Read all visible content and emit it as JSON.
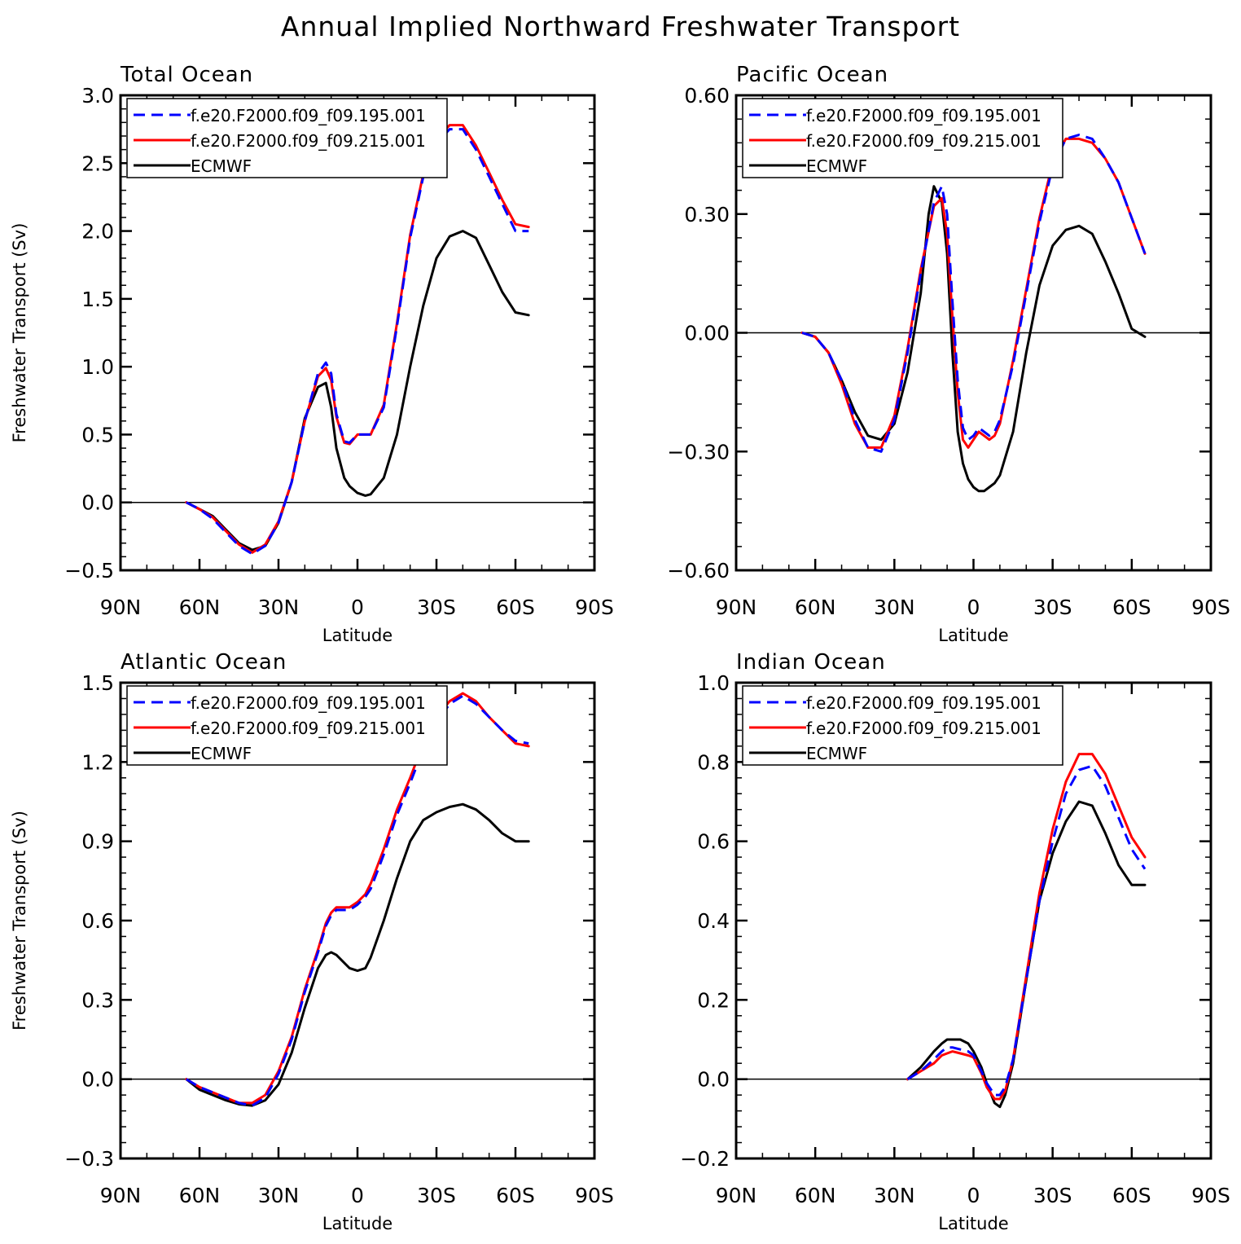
{
  "title": "Annual Implied Northward Freshwater Transport",
  "colors": {
    "case1": "#0000ff",
    "case2": "#ff0000",
    "obs": "#000000"
  },
  "chart_data": [
    {
      "type": "line",
      "panel_title": "Total Ocean",
      "xlabel": "Latitude",
      "ylabel": "Freshwater Transport (Sv)",
      "xlim": [
        90,
        -90
      ],
      "xticks": [
        90,
        60,
        30,
        0,
        -30,
        -60,
        -90
      ],
      "xtick_labels": [
        "90N",
        "60N",
        "30N",
        "0",
        "30S",
        "60S",
        "90S"
      ],
      "ylim": [
        -0.5,
        3.0
      ],
      "yticks": [
        -0.5,
        0.0,
        0.5,
        1.0,
        1.5,
        2.0,
        2.5,
        3.0
      ],
      "ytick_labels": [
        "−0.5",
        "0.0",
        "0.5",
        "1.0",
        "1.5",
        "2.0",
        "2.5",
        "3.0"
      ],
      "legend_position": "top-left",
      "series": [
        {
          "name": "f.e20.F2000.f09_f09.195.001",
          "style": "dashed",
          "color_key": "case1",
          "x": [
            65,
            60,
            55,
            50,
            45,
            40,
            35,
            30,
            25,
            20,
            15,
            12,
            10,
            8,
            5,
            3,
            0,
            -3,
            -5,
            -10,
            -15,
            -20,
            -25,
            -30,
            -35,
            -40,
            -45,
            -50,
            -55,
            -60,
            -65
          ],
          "y": [
            0.0,
            -0.05,
            -0.12,
            -0.22,
            -0.32,
            -0.38,
            -0.32,
            -0.15,
            0.15,
            0.6,
            0.95,
            1.03,
            0.95,
            0.65,
            0.45,
            0.44,
            0.5,
            0.5,
            0.5,
            0.7,
            1.3,
            1.95,
            2.4,
            2.65,
            2.75,
            2.75,
            2.6,
            2.4,
            2.2,
            2.0,
            2.0
          ]
        },
        {
          "name": "f.e20.F2000.f09_f09.215.001",
          "style": "solid",
          "color_key": "case2",
          "x": [
            65,
            60,
            55,
            50,
            45,
            40,
            35,
            30,
            25,
            20,
            15,
            12,
            10,
            8,
            5,
            3,
            0,
            -3,
            -5,
            -10,
            -15,
            -20,
            -25,
            -30,
            -35,
            -40,
            -45,
            -50,
            -55,
            -60,
            -65
          ],
          "y": [
            0.0,
            -0.05,
            -0.11,
            -0.21,
            -0.31,
            -0.37,
            -0.31,
            -0.14,
            0.15,
            0.6,
            0.93,
            0.99,
            0.9,
            0.63,
            0.44,
            0.43,
            0.5,
            0.5,
            0.5,
            0.72,
            1.32,
            1.97,
            2.42,
            2.68,
            2.78,
            2.78,
            2.63,
            2.43,
            2.23,
            2.05,
            2.03
          ]
        },
        {
          "name": "ECMWF",
          "style": "solid",
          "color_key": "obs",
          "x": [
            65,
            60,
            55,
            50,
            45,
            40,
            35,
            30,
            25,
            20,
            15,
            12,
            10,
            8,
            5,
            3,
            0,
            -3,
            -5,
            -10,
            -15,
            -20,
            -25,
            -30,
            -35,
            -40,
            -45,
            -50,
            -55,
            -60,
            -65
          ],
          "y": [
            0.0,
            -0.05,
            -0.1,
            -0.2,
            -0.3,
            -0.35,
            -0.32,
            -0.15,
            0.15,
            0.62,
            0.85,
            0.88,
            0.7,
            0.4,
            0.18,
            0.12,
            0.07,
            0.05,
            0.06,
            0.18,
            0.5,
            1.0,
            1.45,
            1.8,
            1.96,
            2.0,
            1.95,
            1.75,
            1.55,
            1.4,
            1.38
          ]
        }
      ]
    },
    {
      "type": "line",
      "panel_title": "Pacific Ocean",
      "xlabel": "Latitude",
      "ylabel": "",
      "xlim": [
        90,
        -90
      ],
      "xticks": [
        90,
        60,
        30,
        0,
        -30,
        -60,
        -90
      ],
      "xtick_labels": [
        "90N",
        "60N",
        "30N",
        "0",
        "30S",
        "60S",
        "90S"
      ],
      "ylim": [
        -0.6,
        0.6
      ],
      "yticks": [
        -0.6,
        -0.3,
        0.0,
        0.3,
        0.6
      ],
      "ytick_labels": [
        "−0.60",
        "−0.30",
        "0.00",
        "0.30",
        "0.60"
      ],
      "legend_position": "top-left",
      "series": [
        {
          "name": "f.e20.F2000.f09_f09.195.001",
          "style": "dashed",
          "color_key": "case1",
          "x": [
            65,
            60,
            55,
            50,
            45,
            40,
            35,
            30,
            25,
            20,
            15,
            12,
            10,
            8,
            6,
            4,
            2,
            0,
            -2,
            -4,
            -6,
            -8,
            -10,
            -15,
            -20,
            -25,
            -30,
            -35,
            -40,
            -45,
            -50,
            -55,
            -60,
            -65
          ],
          "y": [
            0.0,
            -0.01,
            -0.05,
            -0.12,
            -0.22,
            -0.29,
            -0.3,
            -0.22,
            -0.05,
            0.15,
            0.33,
            0.37,
            0.3,
            0.08,
            -0.12,
            -0.24,
            -0.27,
            -0.26,
            -0.24,
            -0.25,
            -0.26,
            -0.25,
            -0.22,
            -0.08,
            0.1,
            0.28,
            0.42,
            0.49,
            0.5,
            0.49,
            0.44,
            0.38,
            0.29,
            0.2
          ]
        },
        {
          "name": "f.e20.F2000.f09_f09.215.001",
          "style": "solid",
          "color_key": "case2",
          "x": [
            65,
            60,
            55,
            50,
            45,
            40,
            35,
            30,
            25,
            20,
            15,
            12,
            10,
            8,
            6,
            4,
            2,
            0,
            -2,
            -4,
            -6,
            -8,
            -10,
            -15,
            -20,
            -25,
            -30,
            -35,
            -40,
            -45,
            -50,
            -55,
            -60,
            -65
          ],
          "y": [
            0.0,
            -0.01,
            -0.05,
            -0.13,
            -0.23,
            -0.29,
            -0.29,
            -0.21,
            -0.04,
            0.16,
            0.32,
            0.34,
            0.25,
            0.04,
            -0.15,
            -0.27,
            -0.29,
            -0.27,
            -0.25,
            -0.26,
            -0.27,
            -0.26,
            -0.23,
            -0.07,
            0.11,
            0.29,
            0.43,
            0.49,
            0.49,
            0.48,
            0.44,
            0.38,
            0.29,
            0.2
          ]
        },
        {
          "name": "ECMWF",
          "style": "solid",
          "color_key": "obs",
          "x": [
            65,
            60,
            55,
            50,
            45,
            40,
            35,
            30,
            25,
            20,
            17,
            15,
            12,
            10,
            8,
            6,
            4,
            2,
            0,
            -2,
            -4,
            -6,
            -8,
            -10,
            -15,
            -20,
            -25,
            -30,
            -35,
            -40,
            -45,
            -50,
            -55,
            -60,
            -65
          ],
          "y": [
            0.0,
            -0.01,
            -0.05,
            -0.12,
            -0.2,
            -0.26,
            -0.27,
            -0.23,
            -0.1,
            0.1,
            0.3,
            0.37,
            0.33,
            0.2,
            -0.05,
            -0.25,
            -0.33,
            -0.37,
            -0.39,
            -0.4,
            -0.4,
            -0.39,
            -0.38,
            -0.36,
            -0.25,
            -0.05,
            0.12,
            0.22,
            0.26,
            0.27,
            0.25,
            0.18,
            0.1,
            0.01,
            -0.01
          ]
        }
      ]
    },
    {
      "type": "line",
      "panel_title": "Atlantic Ocean",
      "xlabel": "Latitude",
      "ylabel": "Freshwater Transport (Sv)",
      "xlim": [
        90,
        -90
      ],
      "xticks": [
        90,
        60,
        30,
        0,
        -30,
        -60,
        -90
      ],
      "xtick_labels": [
        "90N",
        "60N",
        "30N",
        "0",
        "30S",
        "60S",
        "90S"
      ],
      "ylim": [
        -0.3,
        1.5
      ],
      "yticks": [
        -0.3,
        0.0,
        0.3,
        0.6,
        0.9,
        1.2,
        1.5
      ],
      "ytick_labels": [
        "−0.3",
        "0.0",
        "0.3",
        "0.6",
        "0.9",
        "1.2",
        "1.5"
      ],
      "legend_position": "top-left",
      "series": [
        {
          "name": "f.e20.F2000.f09_f09.195.001",
          "style": "dashed",
          "color_key": "case1",
          "x": [
            65,
            60,
            55,
            50,
            45,
            40,
            35,
            30,
            25,
            20,
            15,
            12,
            10,
            8,
            5,
            3,
            0,
            -3,
            -5,
            -10,
            -15,
            -20,
            -25,
            -30,
            -35,
            -40,
            -45,
            -50,
            -55,
            -60,
            -65
          ],
          "y": [
            0.0,
            -0.03,
            -0.05,
            -0.07,
            -0.09,
            -0.1,
            -0.07,
            0.02,
            0.15,
            0.33,
            0.48,
            0.58,
            0.62,
            0.64,
            0.64,
            0.64,
            0.66,
            0.69,
            0.72,
            0.85,
            1.0,
            1.12,
            1.25,
            1.35,
            1.42,
            1.45,
            1.42,
            1.37,
            1.32,
            1.28,
            1.27
          ]
        },
        {
          "name": "f.e20.F2000.f09_f09.215.001",
          "style": "solid",
          "color_key": "case2",
          "x": [
            65,
            60,
            55,
            50,
            45,
            40,
            35,
            30,
            25,
            20,
            15,
            12,
            10,
            8,
            5,
            3,
            0,
            -3,
            -5,
            -10,
            -15,
            -20,
            -25,
            -30,
            -35,
            -40,
            -45,
            -50,
            -55,
            -60,
            -65
          ],
          "y": [
            0.0,
            -0.03,
            -0.05,
            -0.07,
            -0.09,
            -0.09,
            -0.06,
            0.03,
            0.16,
            0.34,
            0.49,
            0.59,
            0.63,
            0.65,
            0.65,
            0.65,
            0.67,
            0.7,
            0.74,
            0.87,
            1.02,
            1.14,
            1.27,
            1.37,
            1.43,
            1.46,
            1.43,
            1.37,
            1.32,
            1.27,
            1.26
          ]
        },
        {
          "name": "ECMWF",
          "style": "solid",
          "color_key": "obs",
          "x": [
            65,
            60,
            55,
            50,
            45,
            40,
            35,
            30,
            25,
            20,
            15,
            12,
            10,
            8,
            5,
            3,
            0,
            -3,
            -5,
            -10,
            -15,
            -20,
            -25,
            -30,
            -35,
            -40,
            -45,
            -50,
            -55,
            -60,
            -65
          ],
          "y": [
            0.0,
            -0.04,
            -0.06,
            -0.08,
            -0.095,
            -0.1,
            -0.08,
            -0.02,
            0.1,
            0.27,
            0.42,
            0.47,
            0.48,
            0.47,
            0.44,
            0.42,
            0.41,
            0.42,
            0.46,
            0.6,
            0.76,
            0.9,
            0.98,
            1.01,
            1.03,
            1.04,
            1.02,
            0.98,
            0.93,
            0.9,
            0.9
          ]
        }
      ]
    },
    {
      "type": "line",
      "panel_title": "Indian Ocean",
      "xlabel": "Latitude",
      "ylabel": "",
      "xlim": [
        90,
        -90
      ],
      "xticks": [
        90,
        60,
        30,
        0,
        -30,
        -60,
        -90
      ],
      "xtick_labels": [
        "90N",
        "60N",
        "30N",
        "0",
        "30S",
        "60S",
        "90S"
      ],
      "ylim": [
        -0.2,
        1.0
      ],
      "yticks": [
        -0.2,
        0.0,
        0.2,
        0.4,
        0.6,
        0.8,
        1.0
      ],
      "ytick_labels": [
        "−0.2",
        "0.0",
        "0.2",
        "0.4",
        "0.6",
        "0.8",
        "1.0"
      ],
      "legend_position": "top-left",
      "series": [
        {
          "name": "f.e20.F2000.f09_f09.195.001",
          "style": "dashed",
          "color_key": "case1",
          "x": [
            25,
            20,
            15,
            12,
            10,
            8,
            5,
            2,
            0,
            -3,
            -5,
            -8,
            -10,
            -12,
            -15,
            -20,
            -25,
            -30,
            -35,
            -40,
            -45,
            -50,
            -55,
            -60,
            -65
          ],
          "y": [
            0.0,
            0.02,
            0.05,
            0.07,
            0.08,
            0.08,
            0.075,
            0.07,
            0.06,
            0.02,
            -0.01,
            -0.04,
            -0.04,
            -0.02,
            0.05,
            0.25,
            0.45,
            0.6,
            0.72,
            0.78,
            0.79,
            0.74,
            0.66,
            0.58,
            0.53
          ]
        },
        {
          "name": "f.e20.F2000.f09_f09.215.001",
          "style": "solid",
          "color_key": "case2",
          "x": [
            25,
            20,
            15,
            12,
            10,
            8,
            5,
            2,
            0,
            -3,
            -5,
            -8,
            -10,
            -12,
            -15,
            -20,
            -25,
            -30,
            -35,
            -40,
            -45,
            -50,
            -55,
            -60,
            -65
          ],
          "y": [
            0.0,
            0.02,
            0.04,
            0.06,
            0.065,
            0.07,
            0.065,
            0.06,
            0.055,
            0.015,
            -0.02,
            -0.05,
            -0.05,
            -0.03,
            0.05,
            0.26,
            0.47,
            0.63,
            0.75,
            0.82,
            0.82,
            0.77,
            0.69,
            0.61,
            0.56
          ]
        },
        {
          "name": "ECMWF",
          "style": "solid",
          "color_key": "obs",
          "x": [
            25,
            20,
            15,
            12,
            10,
            8,
            5,
            2,
            0,
            -3,
            -5,
            -8,
            -10,
            -12,
            -15,
            -20,
            -25,
            -30,
            -35,
            -40,
            -45,
            -50,
            -55,
            -60,
            -65
          ],
          "y": [
            0.0,
            0.03,
            0.07,
            0.09,
            0.1,
            0.1,
            0.1,
            0.09,
            0.07,
            0.03,
            -0.01,
            -0.06,
            -0.07,
            -0.04,
            0.04,
            0.25,
            0.45,
            0.57,
            0.65,
            0.7,
            0.69,
            0.62,
            0.54,
            0.49,
            0.49
          ]
        }
      ]
    }
  ]
}
